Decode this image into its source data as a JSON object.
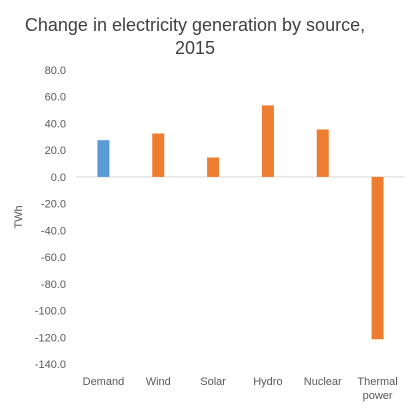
{
  "chart_data": {
    "type": "bar",
    "title": "Change in electricity generation by source, 2015",
    "title_lines": [
      "Change in electricity generation by source,",
      "2015"
    ],
    "xlabel": "",
    "ylabel": "TWh",
    "categories": [
      "Demand",
      "Wind",
      "Solar",
      "Hydro",
      "Nuclear",
      "Thermal power"
    ],
    "category_lines": [
      [
        "Demand"
      ],
      [
        "Wind"
      ],
      [
        "Solar"
      ],
      [
        "Hydro"
      ],
      [
        "Nuclear"
      ],
      [
        "Thermal",
        "power"
      ]
    ],
    "values": [
      27.5,
      32.5,
      14.5,
      53.5,
      35.5,
      -121.5
    ],
    "bar_colors": [
      "#5b9bd5",
      "#ed7d31",
      "#ed7d31",
      "#ed7d31",
      "#ed7d31",
      "#ed7d31"
    ],
    "ylim": [
      -140,
      80
    ],
    "yticks": [
      80,
      60,
      40,
      20,
      0,
      -20,
      -40,
      -60,
      -80,
      -100,
      -120,
      -140
    ],
    "ytick_labels": [
      "80.0",
      "60.0",
      "40.0",
      "20.0",
      "0.0",
      "-20.0",
      "-40.0",
      "-60.0",
      "-80.0",
      "-100.0",
      "-120.0",
      "-140.0"
    ],
    "grid": false,
    "legend": "none"
  }
}
